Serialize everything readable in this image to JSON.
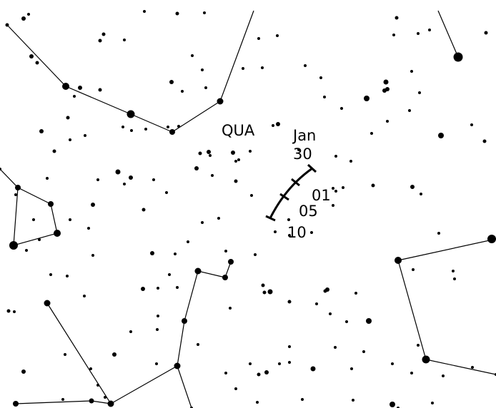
{
  "constellation": "QUA",
  "radiant_dates": {
    "month": "Jan",
    "days": [
      "30",
      "01",
      "05",
      "10"
    ]
  }
}
